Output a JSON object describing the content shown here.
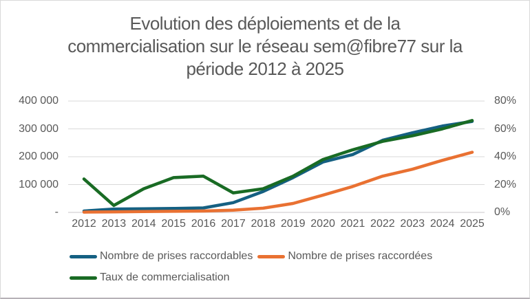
{
  "page": {
    "background": "#ffffff",
    "border_color": "#d9d9d9",
    "text_color": "#595959",
    "gridline_color": "#d9d9d9"
  },
  "title_lines": [
    "Evolution des déploiements et de la",
    "commercialisation sur le réseau sem@fibre77 sur la",
    "période 2012 à 2025"
  ],
  "chart_data": {
    "type": "line",
    "title": "Evolution des déploiements et de la commercialisation sur le réseau sem@fibre77 sur la période 2012 à 2025",
    "categories": [
      "2012",
      "2013",
      "2014",
      "2015",
      "2016",
      "2017",
      "2018",
      "2019",
      "2020",
      "2021",
      "2022",
      "2023",
      "2024",
      "2025"
    ],
    "series": [
      {
        "name": "Nombre de prises raccordables",
        "axis": "left",
        "color": "#156082",
        "values": [
          5000,
          12000,
          13000,
          14000,
          16000,
          35000,
          75000,
          125000,
          181000,
          208000,
          259000,
          286000,
          310000,
          327000
        ]
      },
      {
        "name": "Nombre de prises raccordées",
        "axis": "left",
        "color": "#E97132",
        "values": [
          1000,
          2000,
          3000,
          4000,
          5000,
          8000,
          15000,
          32000,
          62000,
          93000,
          130000,
          155000,
          187000,
          216000
        ]
      },
      {
        "name": "Taux de commercialisation",
        "axis": "right",
        "color": "#196B24",
        "unit": "%",
        "values": [
          24,
          5,
          17,
          25,
          26,
          14,
          17,
          26,
          38,
          45,
          51,
          55,
          60,
          66
        ]
      }
    ],
    "left_axis": {
      "min": 0,
      "max": 400000,
      "tick_labels": [
        "-",
        "100 000",
        "200 000",
        "300 000",
        "400 000"
      ]
    },
    "right_axis": {
      "min": 0,
      "max": 80,
      "tick_labels": [
        "0%",
        "20%",
        "40%",
        "60%",
        "80%"
      ]
    },
    "gridlines": true,
    "legend_position": "bottom"
  }
}
